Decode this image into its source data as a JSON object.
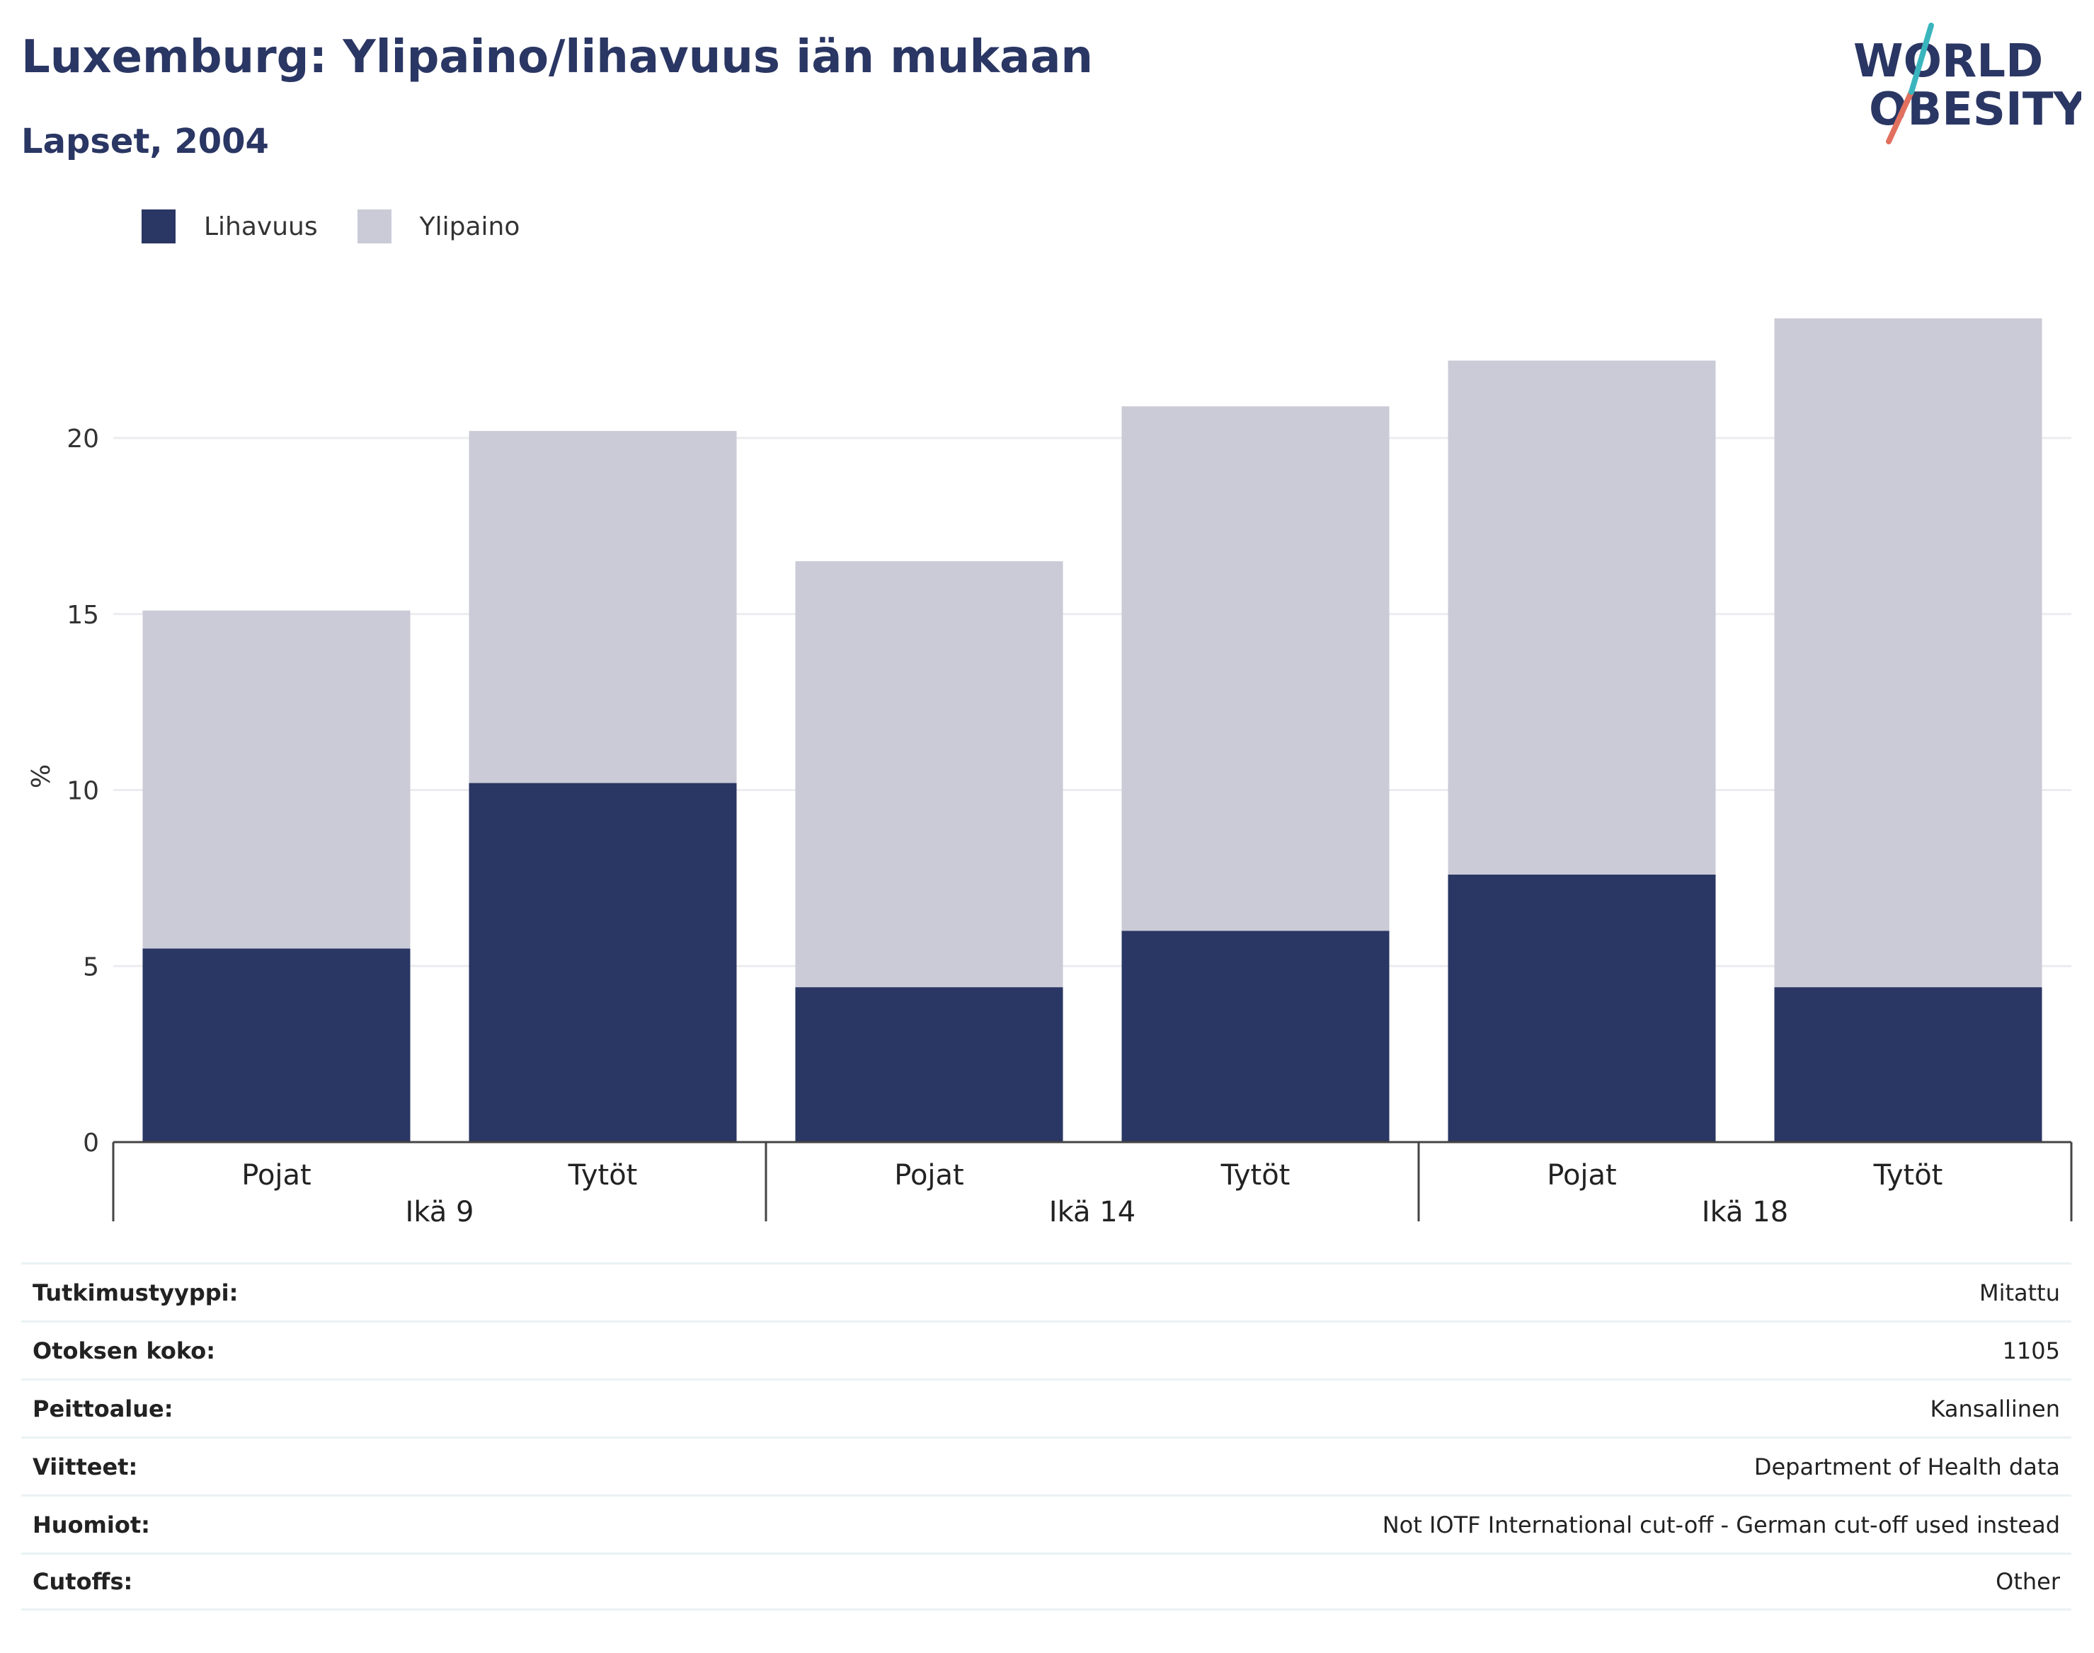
{
  "header": {
    "title": "Luxemburg: Ylipaino/lihavuus iän mukaan",
    "subtitle": "Lapset, 2004"
  },
  "logo": {
    "line1": "WORLD",
    "line2": "OBESITY"
  },
  "legend": [
    {
      "label": "Lihavuus",
      "color": "#2a3663"
    },
    {
      "label": "Ylipaino",
      "color": "#cacbd7"
    }
  ],
  "chart_data": {
    "type": "bar",
    "stacked": true,
    "ylabel": "%",
    "ylim": [
      0,
      24
    ],
    "yticks": [
      0,
      5,
      10,
      15,
      20
    ],
    "grid": true,
    "legend_position": "top-left",
    "groups": [
      {
        "label": "Ikä 9",
        "categories": [
          "Pojat",
          "Tytöt"
        ]
      },
      {
        "label": "Ikä 14",
        "categories": [
          "Pojat",
          "Tytöt"
        ]
      },
      {
        "label": "Ikä 18",
        "categories": [
          "Pojat",
          "Tytöt"
        ]
      }
    ],
    "categories": [
      "Pojat",
      "Tytöt",
      "Pojat",
      "Tytöt",
      "Pojat",
      "Tytöt"
    ],
    "series": [
      {
        "name": "Lihavuus",
        "color": "#2a3663",
        "values": [
          5.5,
          10.2,
          4.4,
          6.0,
          7.6,
          4.4
        ]
      },
      {
        "name": "Ylipaino",
        "color": "#cacbd7",
        "values": [
          9.6,
          10.0,
          12.1,
          14.9,
          14.6,
          19.0
        ]
      }
    ]
  },
  "info_table": [
    {
      "label": "Tutkimustyyppi:",
      "value": "Mitattu"
    },
    {
      "label": "Otoksen koko:",
      "value": "1105"
    },
    {
      "label": "Peittoalue:",
      "value": "Kansallinen"
    },
    {
      "label": "Viitteet:",
      "value": "Department of Health data"
    },
    {
      "label": "Huomiot:",
      "value": "Not IOTF International cut-off - German cut-off used instead"
    },
    {
      "label": "Cutoffs:",
      "value": "Other"
    }
  ]
}
